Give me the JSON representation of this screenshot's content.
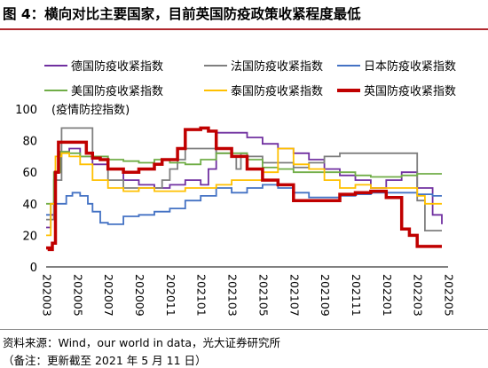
{
  "title": "图 4：横向对比主要国家，目前英国防疫政策收紧程度最低",
  "source": "资料来源：Wind，our world in data，光大证券研究所",
  "note": "（备注：更新截至 2021 年 5 月 11 日）",
  "chart_data": {
    "type": "line",
    "ylabel": "(疫情防控指数)",
    "ylim": [
      0,
      100
    ],
    "yticks": [
      0,
      20,
      40,
      60,
      80,
      100
    ],
    "xlim": [
      0,
      26
    ],
    "xtick_labels": [
      "202003",
      "202005",
      "202007",
      "202009",
      "202011",
      "202101",
      "202103",
      "202105",
      "202107",
      "202109",
      "202111",
      "202201",
      "202203",
      "202205"
    ],
    "legend_position": "top",
    "series": [
      {
        "name": "德国防疫收紧指数",
        "color": "#7030a0",
        "points": [
          [
            0,
            25
          ],
          [
            0.3,
            33
          ],
          [
            0.6,
            60
          ],
          [
            0.9,
            73
          ],
          [
            1.5,
            75
          ],
          [
            2.2,
            70
          ],
          [
            3.0,
            65
          ],
          [
            4.0,
            62
          ],
          [
            5.0,
            55
          ],
          [
            6.0,
            52
          ],
          [
            7.0,
            50
          ],
          [
            8.0,
            52
          ],
          [
            9.0,
            55
          ],
          [
            10.0,
            52
          ],
          [
            10.5,
            62
          ],
          [
            11.0,
            85
          ],
          [
            12.0,
            85
          ],
          [
            13.0,
            82
          ],
          [
            14.0,
            78
          ],
          [
            15.0,
            75
          ],
          [
            16.0,
            72
          ],
          [
            17.0,
            68
          ],
          [
            18.0,
            62
          ],
          [
            19.0,
            58
          ],
          [
            20.0,
            55
          ],
          [
            21.0,
            50
          ],
          [
            22.0,
            55
          ],
          [
            23.0,
            60
          ],
          [
            24.0,
            50
          ],
          [
            25.0,
            33
          ],
          [
            25.6,
            27
          ]
        ]
      },
      {
        "name": "法国防疫收紧指数",
        "color": "#7f7f7f",
        "points": [
          [
            0,
            30
          ],
          [
            0.5,
            55
          ],
          [
            1.0,
            88
          ],
          [
            1.5,
            88
          ],
          [
            2.2,
            88
          ],
          [
            3.0,
            70
          ],
          [
            4.0,
            55
          ],
          [
            5.0,
            50
          ],
          [
            6.0,
            50
          ],
          [
            7.0,
            50
          ],
          [
            7.5,
            55
          ],
          [
            8.0,
            62
          ],
          [
            8.5,
            68
          ],
          [
            9.0,
            75
          ],
          [
            10.0,
            75
          ],
          [
            11.0,
            72
          ],
          [
            12.0,
            70
          ],
          [
            12.3,
            62
          ],
          [
            12.6,
            72
          ],
          [
            13.0,
            70
          ],
          [
            14.0,
            66
          ],
          [
            15.0,
            66
          ],
          [
            16.0,
            63
          ],
          [
            17.0,
            66
          ],
          [
            18.0,
            70
          ],
          [
            19.0,
            72
          ],
          [
            20.0,
            72
          ],
          [
            21.0,
            72
          ],
          [
            22.0,
            72
          ],
          [
            23.0,
            72
          ],
          [
            24.0,
            42
          ],
          [
            24.5,
            23
          ],
          [
            25.6,
            23
          ]
        ]
      },
      {
        "name": "日本防疫收紧指数",
        "color": "#4472c4",
        "points": [
          [
            0,
            33
          ],
          [
            0.3,
            40
          ],
          [
            0.9,
            40
          ],
          [
            1.3,
            45
          ],
          [
            1.7,
            47
          ],
          [
            2.2,
            45
          ],
          [
            2.7,
            40
          ],
          [
            3.0,
            35
          ],
          [
            3.5,
            28
          ],
          [
            4.0,
            27
          ],
          [
            5.0,
            32
          ],
          [
            6.0,
            33
          ],
          [
            7.0,
            35
          ],
          [
            8.0,
            37
          ],
          [
            9.0,
            42
          ],
          [
            10.0,
            45
          ],
          [
            11.0,
            50
          ],
          [
            12.0,
            47
          ],
          [
            13.0,
            50
          ],
          [
            14.0,
            52
          ],
          [
            15.0,
            50
          ],
          [
            16.0,
            47
          ],
          [
            17.0,
            44
          ],
          [
            18.0,
            44
          ],
          [
            19.0,
            45
          ],
          [
            20.0,
            46
          ],
          [
            21.0,
            47
          ],
          [
            22.0,
            47
          ],
          [
            23.0,
            47
          ],
          [
            24.0,
            46
          ],
          [
            25.0,
            45
          ],
          [
            25.6,
            45
          ]
        ]
      },
      {
        "name": "美国防疫收紧指数",
        "color": "#70ad47",
        "points": [
          [
            0,
            40
          ],
          [
            0.5,
            60
          ],
          [
            0.9,
            73
          ],
          [
            1.5,
            72
          ],
          [
            2.2,
            70
          ],
          [
            3.0,
            70
          ],
          [
            4.0,
            68
          ],
          [
            5.0,
            67
          ],
          [
            6.0,
            66
          ],
          [
            7.0,
            68
          ],
          [
            8.0,
            66
          ],
          [
            9.0,
            65
          ],
          [
            10.0,
            68
          ],
          [
            11.0,
            72
          ],
          [
            12.0,
            72
          ],
          [
            13.0,
            68
          ],
          [
            14.0,
            63
          ],
          [
            15.0,
            62
          ],
          [
            16.0,
            60
          ],
          [
            17.0,
            60
          ],
          [
            18.0,
            60
          ],
          [
            19.0,
            60
          ],
          [
            20.0,
            58
          ],
          [
            21.0,
            57
          ],
          [
            22.0,
            57
          ],
          [
            23.0,
            58
          ],
          [
            24.0,
            59
          ],
          [
            25.6,
            59
          ]
        ]
      },
      {
        "name": "泰国防疫收紧指数",
        "color": "#ffc000",
        "points": [
          [
            0,
            20
          ],
          [
            0.3,
            40
          ],
          [
            0.6,
            70
          ],
          [
            1.0,
            72
          ],
          [
            1.5,
            70
          ],
          [
            2.2,
            65
          ],
          [
            3.0,
            55
          ],
          [
            4.0,
            50
          ],
          [
            5.0,
            48
          ],
          [
            6.0,
            50
          ],
          [
            7.0,
            48
          ],
          [
            8.0,
            48
          ],
          [
            9.0,
            50
          ],
          [
            10.0,
            50
          ],
          [
            11.0,
            52
          ],
          [
            12.0,
            55
          ],
          [
            13.0,
            55
          ],
          [
            14.0,
            60
          ],
          [
            15.0,
            75
          ],
          [
            16.0,
            65
          ],
          [
            17.0,
            62
          ],
          [
            18.0,
            55
          ],
          [
            19.0,
            50
          ],
          [
            20.0,
            52
          ],
          [
            21.0,
            50
          ],
          [
            22.0,
            50
          ],
          [
            23.0,
            50
          ],
          [
            24.0,
            45
          ],
          [
            24.5,
            40
          ],
          [
            25.6,
            40
          ]
        ]
      },
      {
        "name": "英国防疫收紧指数",
        "color": "#c00000",
        "thick": true,
        "points": [
          [
            0,
            12
          ],
          [
            0.2,
            11
          ],
          [
            0.4,
            15
          ],
          [
            0.6,
            60
          ],
          [
            0.8,
            79
          ],
          [
            1.5,
            79
          ],
          [
            2.2,
            79
          ],
          [
            2.6,
            72
          ],
          [
            3.0,
            69
          ],
          [
            3.5,
            68
          ],
          [
            4.0,
            62
          ],
          [
            5.0,
            60
          ],
          [
            6.0,
            62
          ],
          [
            7.0,
            65
          ],
          [
            7.5,
            68
          ],
          [
            8.0,
            68
          ],
          [
            8.5,
            75
          ],
          [
            9.0,
            87
          ],
          [
            10.0,
            88
          ],
          [
            10.5,
            86
          ],
          [
            11.0,
            75
          ],
          [
            12.0,
            70
          ],
          [
            13.0,
            62
          ],
          [
            14.0,
            55
          ],
          [
            15.0,
            52
          ],
          [
            16.0,
            42
          ],
          [
            17.0,
            42
          ],
          [
            18.0,
            42
          ],
          [
            19.0,
            46
          ],
          [
            20.0,
            47
          ],
          [
            21.0,
            48
          ],
          [
            22.0,
            44
          ],
          [
            23.0,
            24
          ],
          [
            23.5,
            20
          ],
          [
            24.0,
            13
          ],
          [
            25.6,
            13
          ]
        ]
      }
    ]
  }
}
